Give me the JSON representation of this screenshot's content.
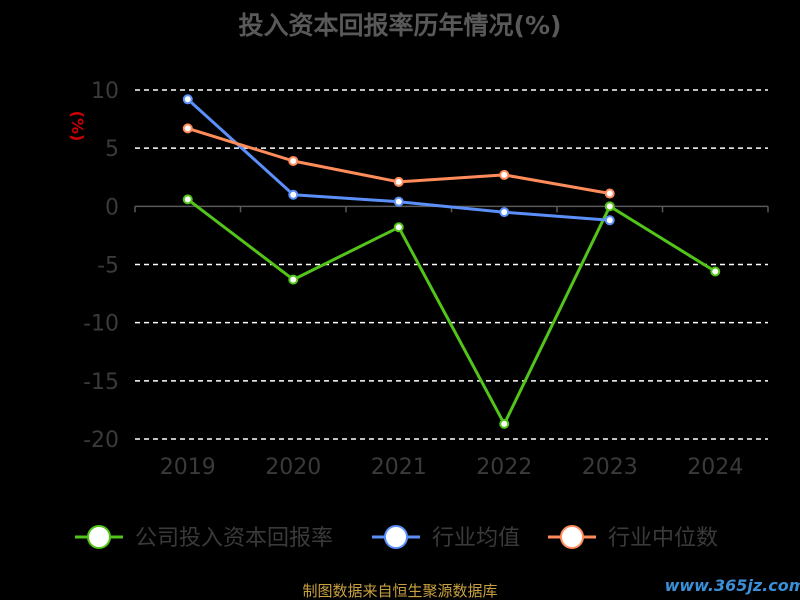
{
  "chart_data": {
    "type": "line",
    "title": "投入资本回报率历年情况(%)",
    "ylabel": "(%)",
    "categories": [
      "2019",
      "2020",
      "2021",
      "2022",
      "2023",
      "2024"
    ],
    "ylim": [
      -20,
      10
    ],
    "yticks": [
      10,
      5,
      0,
      -5,
      -10,
      -15,
      -20
    ],
    "grid": true,
    "legend_position": "bottom",
    "series": [
      {
        "name": "公司投入资本回报率",
        "color": "#52c41a",
        "values": [
          0.6,
          -6.3,
          -1.8,
          -18.7,
          0.0,
          -5.6
        ]
      },
      {
        "name": "行业均值",
        "color": "#5b8ff9",
        "values": [
          9.2,
          1.0,
          0.4,
          -0.5,
          -1.2,
          null
        ]
      },
      {
        "name": "行业中位数",
        "color": "#ff8c5a",
        "values": [
          6.7,
          3.9,
          2.1,
          2.7,
          1.1,
          null
        ]
      }
    ],
    "source_note": "制图数据来自恒生聚源数据库",
    "watermark": "www.365jz.com"
  }
}
